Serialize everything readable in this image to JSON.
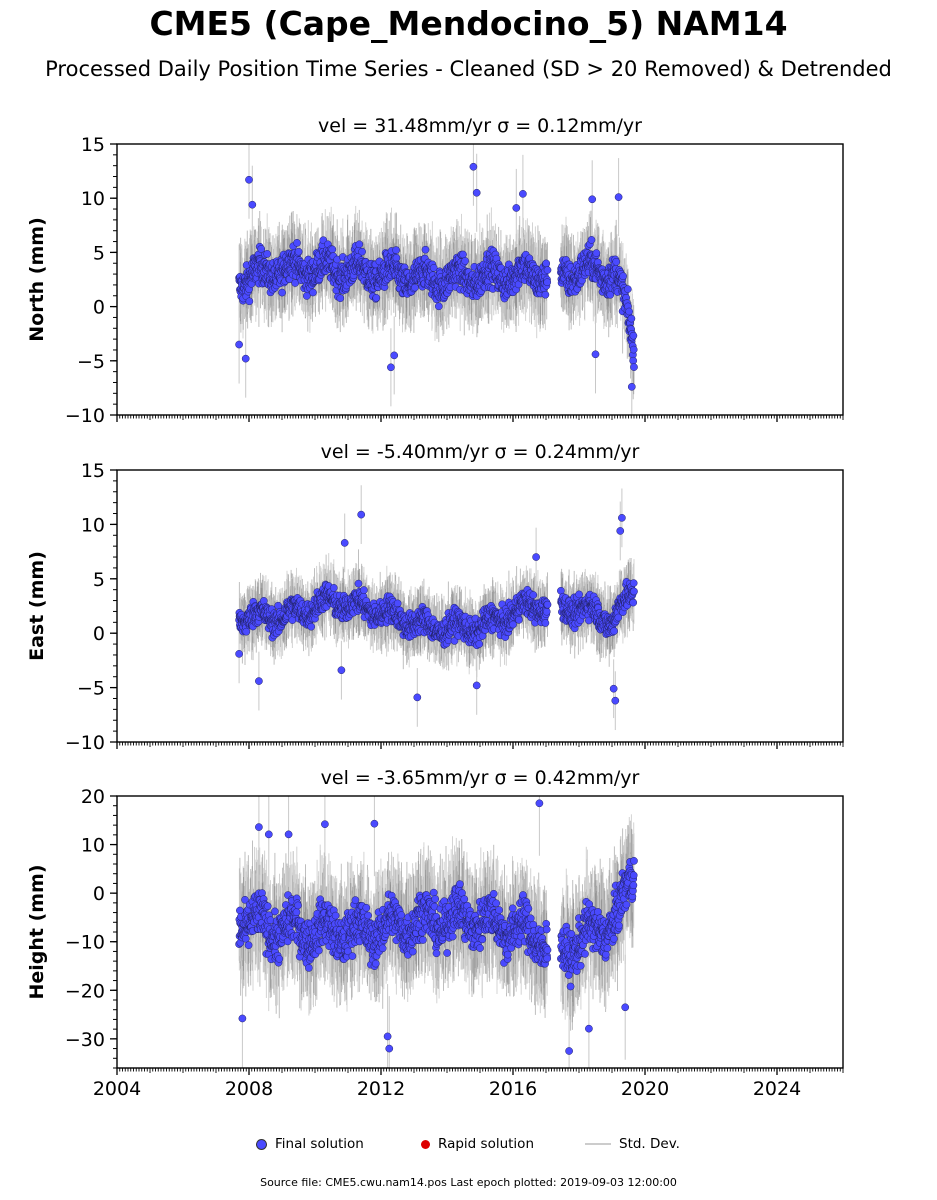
{
  "title": "CME5 (Cape_Mendocino_5) NAM14",
  "subtitle": "Processed Daily Position Time Series - Cleaned (SD > 20 Removed) & Detrended",
  "chart_data": {
    "type": "scatter",
    "x_axis": {
      "min": 2004,
      "max": 2026,
      "ticks": [
        "2004",
        "2008",
        "2012",
        "2016",
        "2020",
        "2024"
      ],
      "minor_ticks": "monthly"
    },
    "panels": [
      {
        "name": "north",
        "title_vel": "vel = 31.48mm/yr",
        "title_sigma": "σ = 0.12mm/yr",
        "ylabel": "North (mm)",
        "ylim": [
          -10,
          15
        ],
        "yticks": [
          "15",
          "10",
          "5",
          "0",
          "−5",
          "−10"
        ],
        "ytick_values": [
          15,
          10,
          5,
          0,
          -5,
          -10
        ],
        "coverage": [
          [
            2007.7,
            2017.05
          ],
          [
            2017.45,
            2019.67
          ]
        ],
        "trend": [
          [
            2007.7,
            2.5
          ],
          [
            2009.0,
            3.5
          ],
          [
            2010.5,
            3.5
          ],
          [
            2012.0,
            3.0
          ],
          [
            2013.5,
            2.5
          ],
          [
            2015.0,
            2.8
          ],
          [
            2016.5,
            3.0
          ],
          [
            2017.5,
            3.0
          ],
          [
            2018.5,
            3.5
          ],
          [
            2019.1,
            3.0
          ],
          [
            2019.4,
            0.0
          ],
          [
            2019.67,
            -3.5
          ]
        ],
        "spread": 2.0,
        "outliers": [
          [
            2007.7,
            -3.5
          ],
          [
            2008.0,
            11.7
          ],
          [
            2008.1,
            9.4
          ],
          [
            2007.9,
            -4.8
          ],
          [
            2012.3,
            -5.6
          ],
          [
            2012.4,
            -4.5
          ],
          [
            2014.8,
            12.9
          ],
          [
            2014.9,
            10.5
          ],
          [
            2016.3,
            10.4
          ],
          [
            2016.1,
            9.1
          ],
          [
            2018.4,
            9.9
          ],
          [
            2019.2,
            10.1
          ],
          [
            2018.5,
            -4.4
          ],
          [
            2019.6,
            -7.4
          ]
        ]
      },
      {
        "name": "east",
        "title_vel": "vel = -5.40mm/yr",
        "title_sigma": "σ = 0.24mm/yr",
        "ylabel": "East (mm)",
        "ylim": [
          -10,
          15
        ],
        "yticks": [
          "15",
          "10",
          "5",
          "0",
          "−5",
          "−10"
        ],
        "ytick_values": [
          15,
          10,
          5,
          0,
          -5,
          -10
        ],
        "coverage": [
          [
            2007.7,
            2017.05
          ],
          [
            2017.45,
            2019.67
          ]
        ],
        "trend": [
          [
            2007.7,
            1.5
          ],
          [
            2009.0,
            1.5
          ],
          [
            2010.5,
            3.0
          ],
          [
            2012.0,
            2.0
          ],
          [
            2013.5,
            0.5
          ],
          [
            2015.0,
            0.5
          ],
          [
            2016.5,
            2.5
          ],
          [
            2017.5,
            2.5
          ],
          [
            2018.5,
            2.0
          ],
          [
            2019.0,
            1.0
          ],
          [
            2019.67,
            4.0
          ]
        ],
        "spread": 1.5,
        "outliers": [
          [
            2011.4,
            10.9
          ],
          [
            2010.9,
            8.3
          ],
          [
            2016.7,
            7.0
          ],
          [
            2019.3,
            10.6
          ],
          [
            2019.25,
            9.4
          ],
          [
            2013.1,
            -5.9
          ],
          [
            2014.9,
            -4.8
          ],
          [
            2019.05,
            -5.1
          ],
          [
            2019.1,
            -6.2
          ],
          [
            2007.7,
            -1.9
          ],
          [
            2008.3,
            -4.4
          ],
          [
            2010.8,
            -3.4
          ]
        ]
      },
      {
        "name": "height",
        "title_vel": "vel = -3.65mm/yr",
        "title_sigma": "σ = 0.42mm/yr",
        "ylabel": "Height (mm)",
        "ylim": [
          -36,
          20
        ],
        "yticks": [
          "20",
          "10",
          "0",
          "−10",
          "−20",
          "−30"
        ],
        "ytick_values": [
          20,
          10,
          0,
          -10,
          -20,
          -30
        ],
        "coverage": [
          [
            2007.7,
            2017.05
          ],
          [
            2017.45,
            2019.67
          ]
        ],
        "trend": [
          [
            2007.7,
            -5.0
          ],
          [
            2008.5,
            -7.0
          ],
          [
            2010.0,
            -8.0
          ],
          [
            2011.5,
            -8.0
          ],
          [
            2013.0,
            -6.0
          ],
          [
            2014.5,
            -5.0
          ],
          [
            2016.0,
            -7.0
          ],
          [
            2017.05,
            -10.0
          ],
          [
            2017.5,
            -12.0
          ],
          [
            2018.5,
            -8.0
          ],
          [
            2019.2,
            -5.0
          ],
          [
            2019.67,
            5.0
          ]
        ],
        "spread": 6.0,
        "outliers": [
          [
            2007.8,
            -25.8
          ],
          [
            2008.3,
            13.6
          ],
          [
            2008.6,
            12.1
          ],
          [
            2009.2,
            12.1
          ],
          [
            2010.3,
            14.2
          ],
          [
            2011.8,
            14.3
          ],
          [
            2012.2,
            -29.5
          ],
          [
            2012.25,
            -32.0
          ],
          [
            2016.8,
            18.5
          ],
          [
            2017.7,
            -32.5
          ],
          [
            2018.3,
            -27.9
          ],
          [
            2019.4,
            -23.5
          ]
        ]
      }
    ],
    "legend": [
      {
        "label": "Final solution",
        "color": "#4a4aff"
      },
      {
        "label": "Rapid solution",
        "color": "#dd0000"
      },
      {
        "label": "Std. Dev.",
        "color": "#cccccc"
      }
    ]
  },
  "source_line": "Source file: CME5.cwu.nam14.pos  Last epoch plotted: 2019-09-03 12:00:00"
}
